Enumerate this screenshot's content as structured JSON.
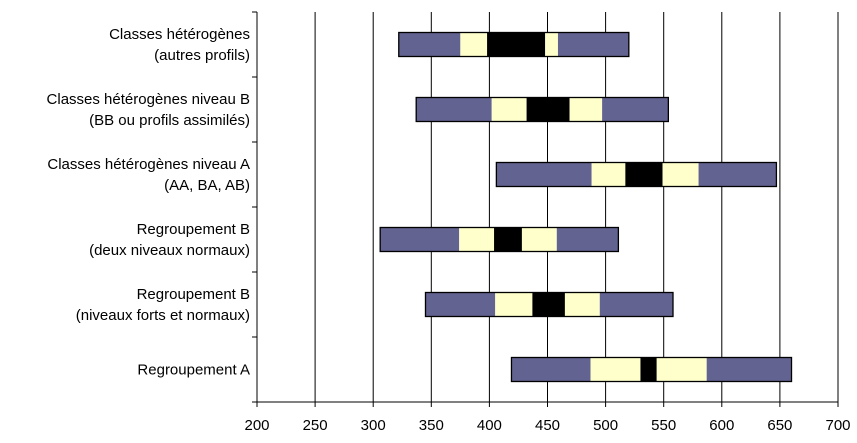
{
  "chart_data": {
    "type": "bar",
    "title": "",
    "xlabel": "",
    "ylabel": "",
    "xlim": [
      200,
      700
    ],
    "x_ticks": [
      "200",
      "250",
      "300",
      "350",
      "400",
      "450",
      "500",
      "550",
      "600",
      "650",
      "700"
    ],
    "grid": "vertical",
    "colors": {
      "outer": "#636391",
      "inner": "#FFFFCC",
      "center": "#000000",
      "stroke": "#000000"
    },
    "categories": [
      {
        "lines": [
          "Classes hétérogènes",
          "(autres profils)"
        ]
      },
      {
        "lines": [
          "Classes hétérogènes niveau B",
          "(BB ou profils assimilés)"
        ]
      },
      {
        "lines": [
          "Classes hétérogènes niveau A",
          "(AA, BA, AB)"
        ]
      },
      {
        "lines": [
          "Regroupement B",
          "(deux niveaux normaux)"
        ]
      },
      {
        "lines": [
          "Regroupement B",
          "(niveaux forts et normaux)"
        ]
      },
      {
        "lines": [
          "Regroupement A"
        ]
      }
    ],
    "series": [
      {
        "values": [
          [
            322,
            375,
            398,
            448,
            459,
            520
          ],
          [
            337,
            402,
            432,
            469,
            497,
            554
          ],
          [
            406,
            488,
            517,
            549,
            580,
            647
          ],
          [
            306,
            374,
            404,
            428,
            458,
            511
          ],
          [
            345,
            405,
            437,
            465,
            495,
            558
          ],
          [
            419,
            487,
            530,
            544,
            587,
            660
          ]
        ]
      }
    ]
  }
}
